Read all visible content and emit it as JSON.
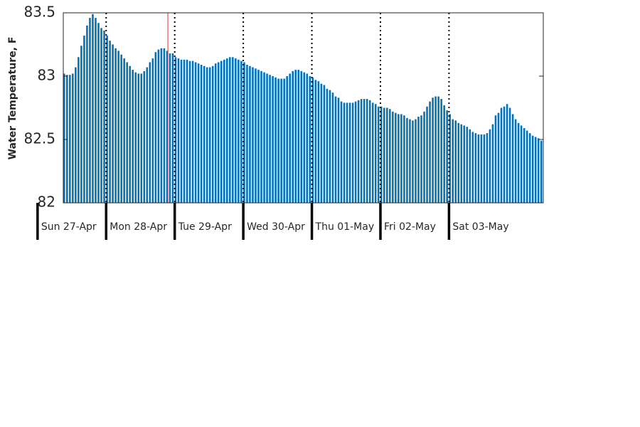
{
  "chart_data": {
    "type": "bar",
    "y_label": "Water Temperature, F",
    "x": [
      9,
      10,
      11,
      12,
      13,
      14,
      15,
      16,
      17,
      18,
      19,
      20,
      21,
      22,
      23,
      24,
      25,
      26,
      27,
      28,
      29,
      30,
      31,
      32,
      33,
      34,
      35,
      36,
      37,
      38,
      39,
      40,
      41,
      42,
      43,
      44,
      45,
      46,
      47,
      48,
      49,
      50,
      51,
      52,
      53,
      54,
      55,
      56,
      57,
      58,
      59,
      60,
      61,
      62,
      63,
      64,
      65,
      66,
      67,
      68,
      69,
      70,
      71,
      72,
      73,
      74,
      75,
      76,
      77,
      78,
      79,
      80,
      81,
      82,
      83,
      84,
      85,
      86,
      87,
      88,
      89,
      90,
      91,
      92,
      93,
      94,
      95,
      96,
      97,
      98,
      99,
      100,
      101,
      102,
      103,
      104,
      105,
      106,
      107,
      108,
      109,
      110,
      111,
      112,
      113,
      114,
      115,
      116,
      117,
      118,
      119,
      120,
      121,
      122,
      123,
      124,
      125,
      126,
      127,
      128,
      129,
      130,
      131,
      132,
      133,
      134,
      135,
      136,
      137,
      138,
      139,
      140,
      141,
      142,
      143,
      144,
      145,
      146,
      147,
      148,
      149,
      150,
      151,
      152,
      153,
      154,
      155,
      156,
      157,
      158,
      159,
      160,
      161,
      162,
      163,
      164,
      165,
      166,
      167,
      168,
      169,
      170,
      171,
      172,
      173,
      174,
      175,
      176
    ],
    "values": [
      83.02,
      83.01,
      83.01,
      83.02,
      83.07,
      83.15,
      83.24,
      83.32,
      83.4,
      83.46,
      83.49,
      83.46,
      83.42,
      83.38,
      83.36,
      83.32,
      83.28,
      83.25,
      83.22,
      83.2,
      83.17,
      83.14,
      83.11,
      83.08,
      83.05,
      83.03,
      83.02,
      83.02,
      83.04,
      83.07,
      83.11,
      83.14,
      83.19,
      83.21,
      83.22,
      83.22,
      83.2,
      83.18,
      83.18,
      83.15,
      83.14,
      83.13,
      83.13,
      83.13,
      83.12,
      83.12,
      83.11,
      83.1,
      83.09,
      83.08,
      83.07,
      83.07,
      83.08,
      83.1,
      83.11,
      83.12,
      83.13,
      83.14,
      83.15,
      83.15,
      83.14,
      83.13,
      83.12,
      83.11,
      83.09,
      83.08,
      83.07,
      83.06,
      83.05,
      83.04,
      83.03,
      83.02,
      83.01,
      83.0,
      82.99,
      82.98,
      82.98,
      82.98,
      83.0,
      83.02,
      83.04,
      83.05,
      83.05,
      83.04,
      83.03,
      83.02,
      83.0,
      82.99,
      82.97,
      82.96,
      82.94,
      82.93,
      82.9,
      82.89,
      82.87,
      82.84,
      82.83,
      82.8,
      82.79,
      82.79,
      82.79,
      82.79,
      82.8,
      82.81,
      82.82,
      82.82,
      82.82,
      82.81,
      82.79,
      82.78,
      82.76,
      82.76,
      82.75,
      82.75,
      82.74,
      82.72,
      82.71,
      82.7,
      82.7,
      82.69,
      82.67,
      82.66,
      82.65,
      82.66,
      82.68,
      82.69,
      82.72,
      82.76,
      82.8,
      82.83,
      82.84,
      82.84,
      82.82,
      82.77,
      82.73,
      82.7,
      82.66,
      82.65,
      82.63,
      82.62,
      82.61,
      82.6,
      82.58,
      82.56,
      82.55,
      82.54,
      82.54,
      82.54,
      82.55,
      82.58,
      82.62,
      82.69,
      82.71,
      82.75,
      82.76,
      82.78,
      82.75,
      82.7,
      82.66,
      82.63,
      82.61,
      82.59,
      82.57,
      82.55,
      82.53,
      82.52,
      82.51,
      82.49
    ],
    "color": "#0072bd",
    "xlim": [
      9,
      177
    ],
    "xticks": [
      {
        "value": 0,
        "label": "Sun 27-Apr"
      },
      {
        "value": 24,
        "label": "Mon 28-Apr"
      },
      {
        "value": 48,
        "label": "Tue 29-Apr"
      },
      {
        "value": 72,
        "label": "Wed 30-Apr"
      },
      {
        "value": 96,
        "label": "Thu 01-May"
      },
      {
        "value": 120,
        "label": "Fri 02-May"
      },
      {
        "value": 144,
        "label": "Sat 03-May"
      }
    ],
    "xgrid": true,
    "ylim": [
      82,
      83.5
    ],
    "yticks": [
      82,
      82.5,
      83,
      83.5
    ],
    "vline": {
      "x": 45.6,
      "color": "#e8312a"
    }
  }
}
